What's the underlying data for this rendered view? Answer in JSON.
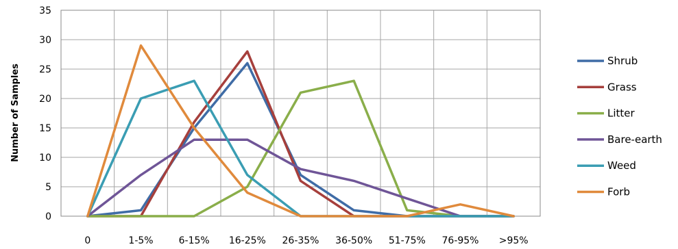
{
  "chart_data": {
    "type": "line",
    "title": "",
    "xlabel": "",
    "ylabel": "Number of Samples",
    "categories": [
      "0",
      "1-5%",
      "6-15%",
      "16-25%",
      "26-35%",
      "36-50%",
      "51-75%",
      "76-95%",
      ">95%"
    ],
    "ylim": [
      0,
      35
    ],
    "yticks": [
      0,
      5,
      10,
      15,
      20,
      25,
      30,
      35
    ],
    "grid": "both",
    "legend": "right",
    "series": [
      {
        "name": "Shrub",
        "color": "#3F6CA6",
        "values": [
          0,
          1,
          15,
          26,
          7,
          1,
          0,
          0,
          0
        ]
      },
      {
        "name": "Grass",
        "color": "#A63F3C",
        "values": [
          0,
          0,
          16,
          28,
          6,
          0,
          0,
          0,
          0
        ]
      },
      {
        "name": "Litter",
        "color": "#8AAE4A",
        "values": [
          0,
          0,
          0,
          5,
          21,
          23,
          1,
          0,
          0
        ]
      },
      {
        "name": "Bare-earth",
        "color": "#6F5597",
        "values": [
          0,
          7,
          13,
          13,
          8,
          6,
          3,
          0,
          0
        ]
      },
      {
        "name": "Weed",
        "color": "#3A9DB3",
        "values": [
          0,
          20,
          23,
          7,
          0,
          0,
          0,
          0,
          0
        ]
      },
      {
        "name": "Forb",
        "color": "#E08A3C",
        "values": [
          0,
          29,
          15,
          4,
          0,
          0,
          0,
          2,
          0
        ]
      }
    ]
  }
}
